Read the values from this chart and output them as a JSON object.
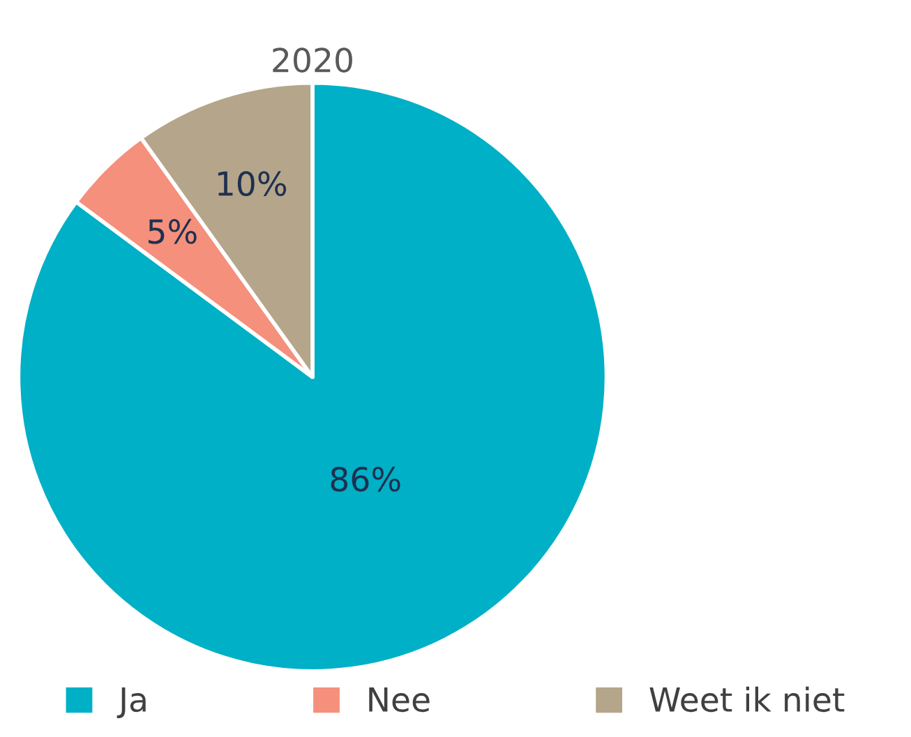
{
  "chart_data": {
    "type": "pie",
    "title": "2020",
    "categories": [
      "Ja",
      "Nee",
      "Weet ik niet"
    ],
    "values": [
      86,
      5,
      10
    ],
    "colors": [
      "#00b0c6",
      "#f4907c",
      "#b5a58b"
    ],
    "data_labels": true,
    "value_labels": [
      "86%",
      "5%",
      "10%"
    ],
    "legend": "bottom"
  }
}
